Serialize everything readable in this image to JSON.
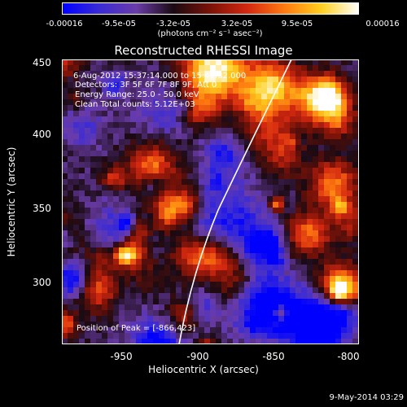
{
  "colorbar": {
    "tick_labels": [
      "-0.00016",
      "-9.5e-05",
      "-3.2e-05",
      "3.2e-05",
      "9.5e-05",
      "0.00016"
    ],
    "units": "(photons cm⁻² s⁻¹ asec⁻²)",
    "colors": [
      "#0000ff",
      "#3a2bd6",
      "#6a3ca8",
      "#1a0a12",
      "#7a1208",
      "#d42810",
      "#ff7a10",
      "#ffd020",
      "#ffffff"
    ]
  },
  "plot": {
    "title": "Reconstructed RHESSI Image",
    "annotations": [
      "6-Aug-2012 15:37:14.000 to 15:41:32.000",
      "Detectors: 3F 5F 6F 7F 8F 9F, Att 0",
      "Energy Range: 25.0 - 50.0 keV",
      "Clean     Total counts: 5.12E+03"
    ],
    "peak_label": "Position of Peak = [-866,423]",
    "xlabel": "Heliocentric X (arcsec)",
    "ylabel": "Heliocentric Y (arcsec)",
    "xticks": [
      "-950",
      "-900",
      "-850",
      "-800"
    ],
    "yticks": [
      "450",
      "400",
      "350",
      "300"
    ],
    "xlim": [
      -990,
      -795
    ],
    "ylim": [
      255,
      452
    ]
  },
  "footer": {
    "date": "9-May-2014 03:29"
  }
}
